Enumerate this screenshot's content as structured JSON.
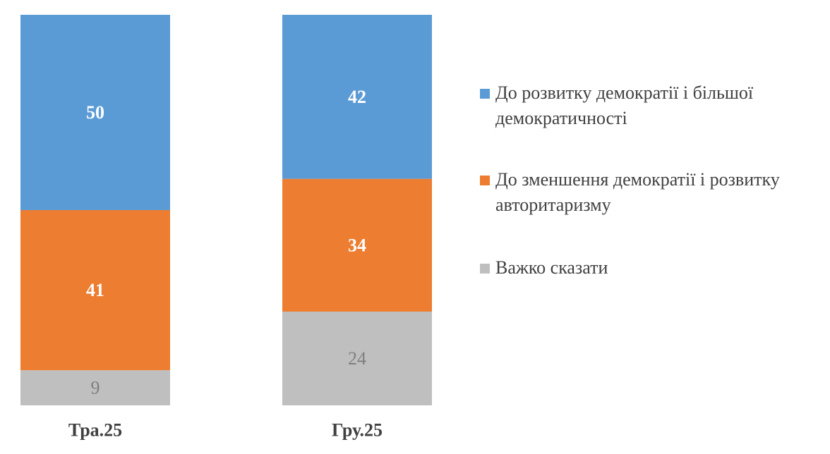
{
  "chart_data": {
    "type": "bar",
    "stacked": true,
    "categories": [
      "Тра.25",
      "Гру.25"
    ],
    "series": [
      {
        "name": "Важко сказати",
        "values": [
          9,
          24
        ],
        "color": "#BFBFBF",
        "label_color": "#7F7F7F",
        "label_bold": false
      },
      {
        "name": "До зменшення демократії і розвитку авторитаризму",
        "values": [
          41,
          34
        ],
        "color": "#ED7D31",
        "label_color": "#FFFFFF",
        "label_bold": true
      },
      {
        "name": "До розвитку демократії і більшої демократичності",
        "values": [
          50,
          42
        ],
        "color": "#5B9BD5",
        "label_color": "#FFFFFF",
        "label_bold": true
      }
    ],
    "ylim": [
      0,
      100
    ],
    "grid": false,
    "legend_position": "right"
  }
}
